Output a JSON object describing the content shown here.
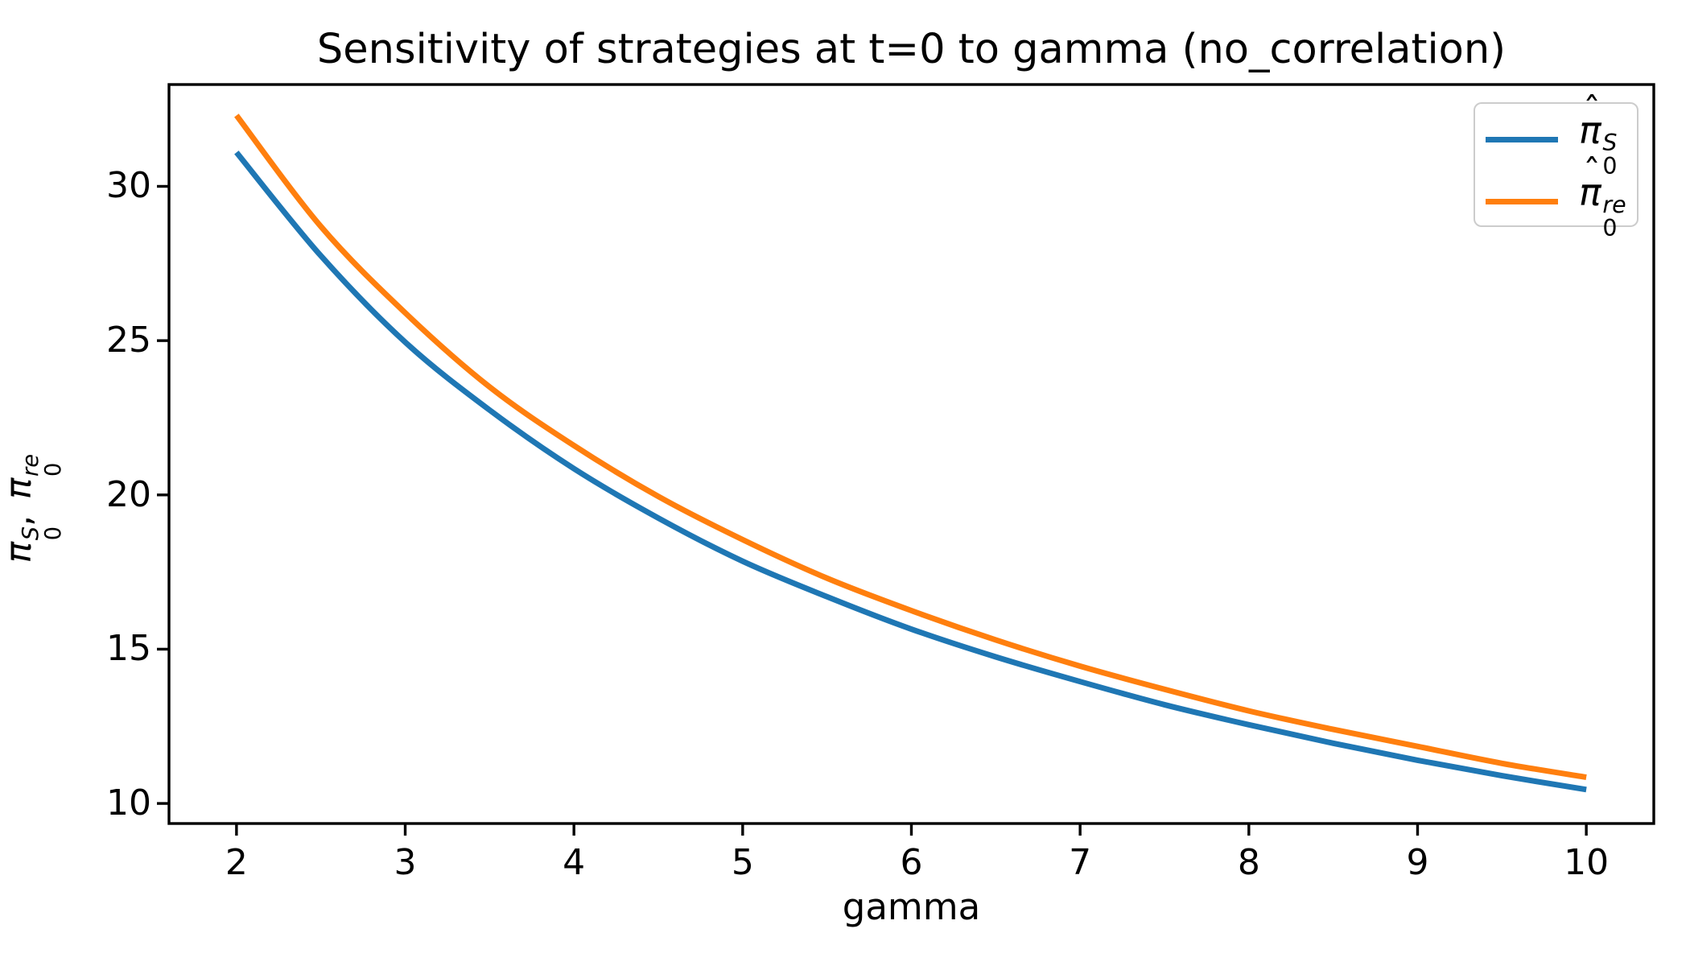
{
  "chart_data": {
    "type": "line",
    "title": "Sensitivity of strategies at t=0 to gamma (no_correlation)",
    "xlabel": "gamma",
    "ylabel_text": "π̂₀^S, π̂₀^re",
    "xlim": [
      1.6,
      10.4
    ],
    "ylim": [
      9.35,
      33.3
    ],
    "x_ticks": [
      2,
      3,
      4,
      5,
      6,
      7,
      8,
      9,
      10
    ],
    "y_ticks": [
      10,
      15,
      20,
      25,
      30
    ],
    "grid": false,
    "legend_position": "upper right",
    "background": "#ffffff",
    "axis_color": "#000000",
    "x": [
      2,
      2.5,
      3,
      3.5,
      4,
      4.5,
      5,
      5.5,
      6,
      6.5,
      7,
      7.5,
      8,
      8.5,
      9,
      9.5,
      10
    ],
    "series": [
      {
        "name": "pi0-S",
        "label": {
          "base": "π",
          "hat": true,
          "sup": "S",
          "sub": "0"
        },
        "color": "#1f77b4",
        "values": [
          31.1,
          27.75,
          24.95,
          22.75,
          20.85,
          19.25,
          17.85,
          16.7,
          15.65,
          14.75,
          13.95,
          13.2,
          12.55,
          11.95,
          11.4,
          10.9,
          10.45
        ]
      },
      {
        "name": "pi0-re",
        "label": {
          "base": "π",
          "hat": true,
          "sup": "re",
          "sub": "0"
        },
        "color": "#ff7f0e",
        "values": [
          32.3,
          28.7,
          25.9,
          23.5,
          21.6,
          19.95,
          18.55,
          17.3,
          16.25,
          15.3,
          14.45,
          13.7,
          13.0,
          12.4,
          11.85,
          11.3,
          10.85
        ]
      }
    ]
  }
}
